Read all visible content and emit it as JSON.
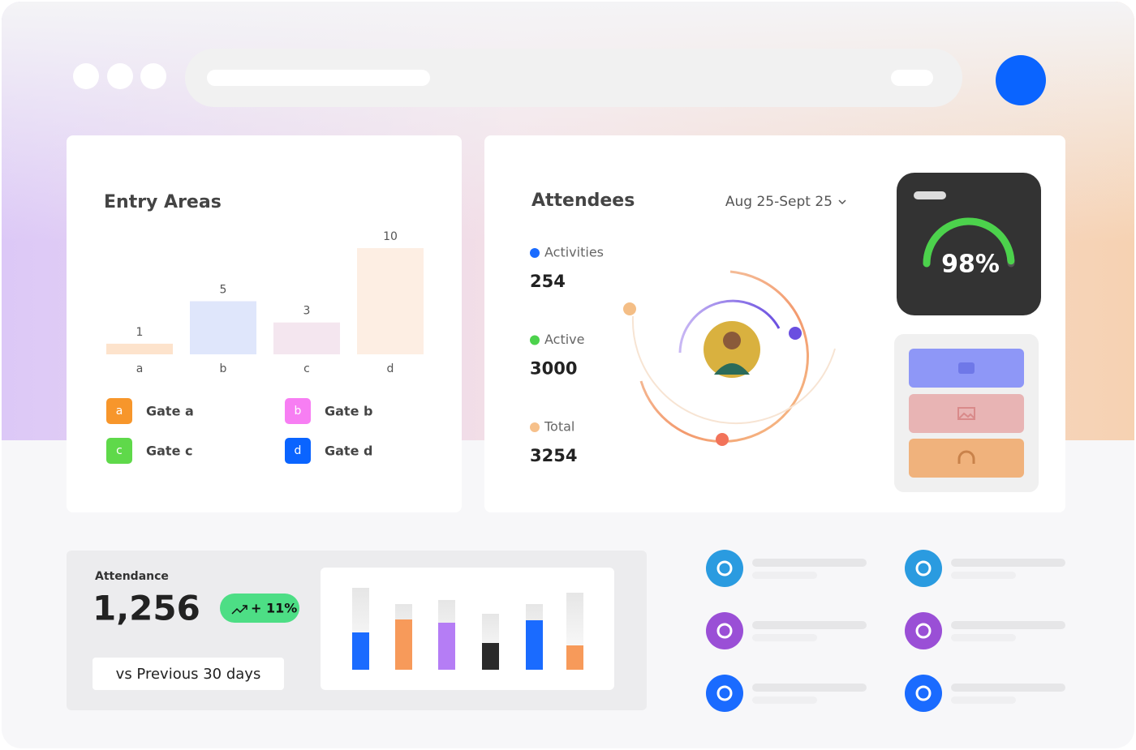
{
  "entry_areas": {
    "title": "Entry Areas",
    "chart": {
      "type": "bar",
      "categories": [
        "a",
        "b",
        "c",
        "d"
      ],
      "values": [
        1,
        5,
        3,
        10
      ],
      "colors": [
        "#fde3cc",
        "#dfe6fb",
        "#f4e6ef",
        "#fdeee3"
      ]
    },
    "legend": [
      {
        "key": "a",
        "label": "Gate a",
        "color": "#f7962b"
      },
      {
        "key": "b",
        "label": "Gate b",
        "color": "#f77ef3"
      },
      {
        "key": "c",
        "label": "Gate c",
        "color": "#5fd94a"
      },
      {
        "key": "d",
        "label": "Gate d",
        "color": "#0a64ff"
      }
    ]
  },
  "attendees": {
    "title": "Attendees",
    "date_range": "Aug 25-Sept 25",
    "stats": [
      {
        "label": "Activities",
        "value": 254,
        "color": "#1a6bff"
      },
      {
        "label": "Active",
        "value": 3000,
        "color": "#4cd24c"
      },
      {
        "label": "Total",
        "value": 3254,
        "color": "#f6c08a"
      }
    ],
    "gauge": {
      "value": 98,
      "label": "98%",
      "color": "#4cd24c"
    }
  },
  "attendance": {
    "title": "Attendance",
    "value": "1,256",
    "change": "+ 11%",
    "comparison": "vs Previous 30 days"
  }
}
